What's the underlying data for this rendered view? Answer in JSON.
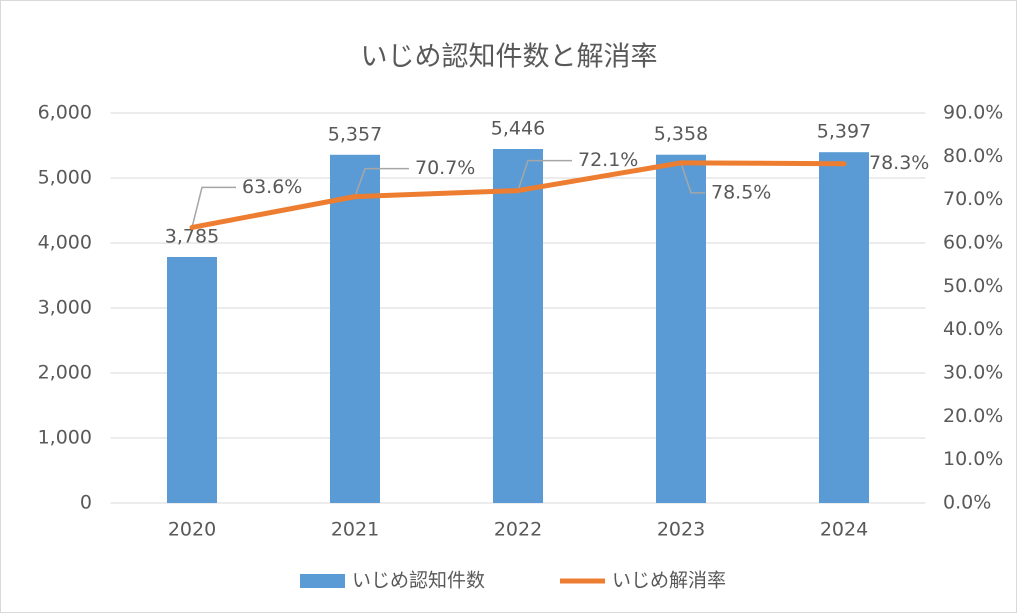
{
  "chart_data": {
    "type": "bar",
    "title": "いじめ認知件数と解消率",
    "categories": [
      "2020",
      "2021",
      "2022",
      "2023",
      "2024"
    ],
    "series": [
      {
        "name": "いじめ認知件数",
        "type": "bar",
        "color": "#5b9bd5",
        "values": [
          3785,
          5357,
          5446,
          5358,
          5397
        ],
        "value_labels": [
          "3,785",
          "5,357",
          "5,446",
          "5,358",
          "5,397"
        ]
      },
      {
        "name": "いじめ解消率",
        "type": "line",
        "axis": "y2",
        "color": "#ed7d31",
        "values": [
          63.6,
          70.7,
          72.1,
          78.5,
          78.3
        ],
        "value_labels": [
          "63.6%",
          "70.7%",
          "72.1%",
          "78.5%",
          "78.3%"
        ]
      }
    ],
    "ylim": [
      0,
      6000
    ],
    "yticks": [
      0,
      {
        "value": 1000,
        "label": "1,000"
      },
      {
        "value": 2000,
        "label": "2,000"
      },
      {
        "value": 3000,
        "label": "3,000"
      },
      {
        "value": 4000,
        "label": "4,000"
      },
      {
        "value": 5000,
        "label": "5,000"
      },
      {
        "value": 6000,
        "label": "6,000"
      }
    ],
    "y2lim": [
      0,
      90
    ],
    "y2ticks": [
      {
        "value": 0,
        "label": "0.0%"
      },
      {
        "value": 10,
        "label": "10.0%"
      },
      {
        "value": 20,
        "label": "20.0%"
      },
      {
        "value": 30,
        "label": "30.0%"
      },
      {
        "value": 40,
        "label": "40.0%"
      },
      {
        "value": 50,
        "label": "50.0%"
      },
      {
        "value": 60,
        "label": "60.0%"
      },
      {
        "value": 70,
        "label": "70.0%"
      },
      {
        "value": 80,
        "label": "80.0%"
      },
      {
        "value": 90,
        "label": "90.0%"
      }
    ],
    "grid": true,
    "legend": "bottom"
  }
}
